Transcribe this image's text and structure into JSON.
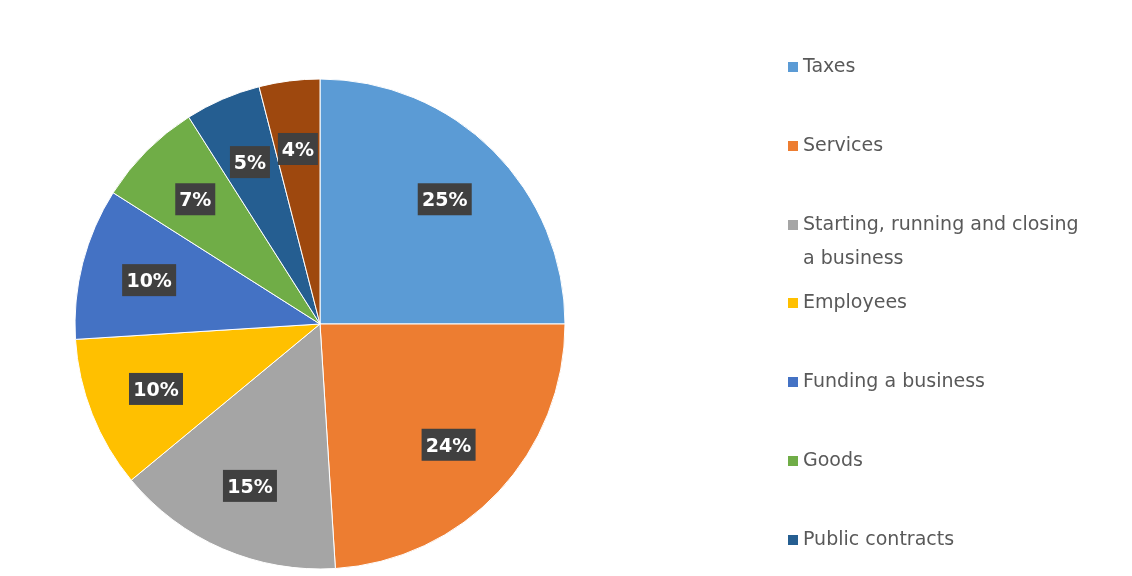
{
  "chart_data": {
    "type": "pie",
    "categories": [
      "Taxes",
      "Services",
      "Starting, running and closing a business",
      "Employees",
      "Funding a business",
      "Goods",
      "Public contracts",
      null
    ],
    "values": [
      25,
      24,
      15,
      10,
      10,
      7,
      5,
      4
    ],
    "colors": [
      "#5b9bd5",
      "#ed7d31",
      "#a5a5a5",
      "#ffc000",
      "#4472c4",
      "#70ad47",
      "#255e91",
      "#9e480e"
    ],
    "value_labels": [
      "25%",
      "24%",
      "15%",
      "10%",
      "10%",
      "7%",
      "5%",
      "4%"
    ],
    "legend": "right"
  }
}
